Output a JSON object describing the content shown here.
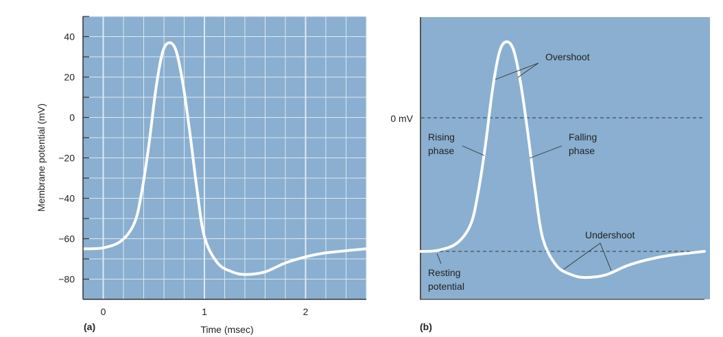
{
  "colors": {
    "plot_background": "#8aafd0",
    "grid": "#dfe9f3",
    "curve": "#ffffff",
    "axis": "#333333"
  },
  "chart_data": [
    {
      "panel": "(a)",
      "type": "line",
      "xlabel": "Time (msec)",
      "ylabel": "Membrane potential (mV)",
      "xlim": [
        -0.2,
        2.6
      ],
      "ylim": [
        -90,
        50
      ],
      "xticks": [
        0,
        1,
        2
      ],
      "yticks": [
        40,
        20,
        0,
        -20,
        -40,
        -60,
        -80
      ],
      "xtick_labels": [
        "0",
        "1",
        "2"
      ],
      "ytick_labels": [
        "40",
        "20",
        "0",
        "−20",
        "−40",
        "−60",
        "−80"
      ],
      "grid": true,
      "x": [
        -0.2,
        0,
        0.18,
        0.31,
        0.38,
        0.45,
        0.52,
        0.585,
        0.65,
        0.72,
        0.79,
        0.86,
        0.925,
        1.0,
        1.13,
        1.28,
        1.41,
        1.6,
        1.8,
        2.0,
        2.2,
        2.6
      ],
      "y": [
        -65,
        -64.5,
        -61,
        -52,
        -37,
        -14,
        14,
        32,
        37,
        33,
        16,
        -9,
        -35,
        -59,
        -72,
        -76.5,
        -77.7,
        -76.4,
        -72,
        -69,
        -67,
        -65
      ]
    },
    {
      "panel": "(b)",
      "type": "line",
      "reference_lines": [
        {
          "label": "0 mV",
          "value": 0
        },
        {
          "label": "",
          "value": -65
        }
      ],
      "annotations": {
        "overshoot": "Overshoot",
        "rising": [
          "Rising",
          "phase"
        ],
        "falling": [
          "Falling",
          "phase"
        ],
        "undershoot": "Undershoot",
        "resting": [
          "Resting",
          "potential"
        ]
      }
    }
  ]
}
